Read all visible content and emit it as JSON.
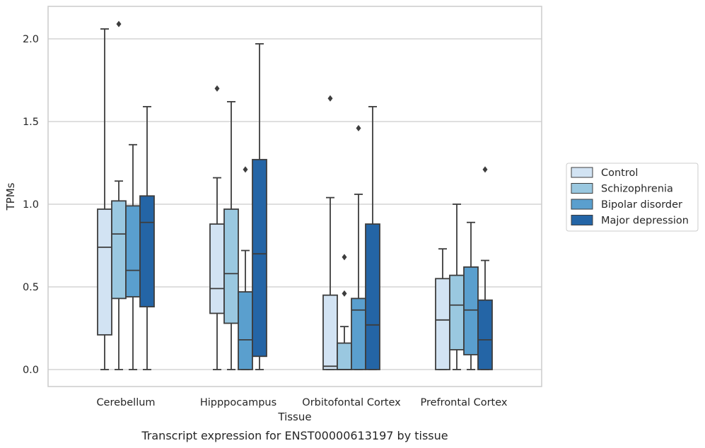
{
  "caption": "Transcript expression for ENST00000613197 by tissue",
  "chart_data": {
    "type": "box",
    "xlabel": "Tissue",
    "ylabel": "TPMs",
    "ylim": [
      -0.1,
      2.2
    ],
    "yticks": [
      0.0,
      0.5,
      1.0,
      1.5,
      2.0
    ],
    "ytick_labels": [
      "0.0",
      "0.5",
      "1.0",
      "1.5",
      "2.0"
    ],
    "grid": "horizontal",
    "legend_position": "right",
    "categories": [
      "Cerebellum",
      "Hipppocampus",
      "Orbitofontal Cortex",
      "Prefrontal Cortex"
    ],
    "series": [
      {
        "name": "Control",
        "color": "#d2e3f3",
        "boxes": [
          {
            "whislo": 0.0,
            "q1": 0.21,
            "med": 0.74,
            "q3": 0.97,
            "whishi": 2.06,
            "fliers": []
          },
          {
            "whislo": 0.0,
            "q1": 0.34,
            "med": 0.49,
            "q3": 0.88,
            "whishi": 1.16,
            "fliers": [
              1.7
            ]
          },
          {
            "whislo": 0.0,
            "q1": 0.0,
            "med": 0.02,
            "q3": 0.45,
            "whishi": 1.04,
            "fliers": [
              1.64
            ]
          },
          {
            "whislo": 0.0,
            "q1": 0.0,
            "med": 0.3,
            "q3": 0.55,
            "whishi": 0.73,
            "fliers": []
          }
        ]
      },
      {
        "name": "Schizophrenia",
        "color": "#9ac8e0",
        "boxes": [
          {
            "whislo": 0.0,
            "q1": 0.43,
            "med": 0.82,
            "q3": 1.02,
            "whishi": 1.14,
            "fliers": [
              2.09
            ]
          },
          {
            "whislo": 0.0,
            "q1": 0.28,
            "med": 0.58,
            "q3": 0.97,
            "whishi": 1.62,
            "fliers": []
          },
          {
            "whislo": 0.0,
            "q1": 0.0,
            "med": 0.0,
            "q3": 0.16,
            "whishi": 0.26,
            "fliers": [
              0.46,
              0.68
            ]
          },
          {
            "whislo": 0.0,
            "q1": 0.12,
            "med": 0.39,
            "q3": 0.57,
            "whishi": 1.0,
            "fliers": []
          }
        ]
      },
      {
        "name": "Bipolar disorder",
        "color": "#5a9fce",
        "boxes": [
          {
            "whislo": 0.0,
            "q1": 0.44,
            "med": 0.6,
            "q3": 0.99,
            "whishi": 1.36,
            "fliers": []
          },
          {
            "whislo": 0.0,
            "q1": 0.0,
            "med": 0.18,
            "q3": 0.47,
            "whishi": 0.72,
            "fliers": [
              1.21
            ]
          },
          {
            "whislo": 0.0,
            "q1": 0.0,
            "med": 0.36,
            "q3": 0.43,
            "whishi": 1.06,
            "fliers": [
              1.46
            ]
          },
          {
            "whislo": 0.0,
            "q1": 0.09,
            "med": 0.36,
            "q3": 0.62,
            "whishi": 0.89,
            "fliers": []
          }
        ]
      },
      {
        "name": "Major depression",
        "color": "#2465a6",
        "boxes": [
          {
            "whislo": 0.0,
            "q1": 0.38,
            "med": 0.89,
            "q3": 1.05,
            "whishi": 1.59,
            "fliers": []
          },
          {
            "whislo": 0.0,
            "q1": 0.08,
            "med": 0.7,
            "q3": 1.27,
            "whishi": 1.97,
            "fliers": []
          },
          {
            "whislo": 0.0,
            "q1": 0.0,
            "med": 0.27,
            "q3": 0.88,
            "whishi": 1.59,
            "fliers": []
          },
          {
            "whislo": 0.0,
            "q1": 0.0,
            "med": 0.18,
            "q3": 0.42,
            "whishi": 0.66,
            "fliers": [
              1.21
            ]
          }
        ]
      }
    ]
  }
}
